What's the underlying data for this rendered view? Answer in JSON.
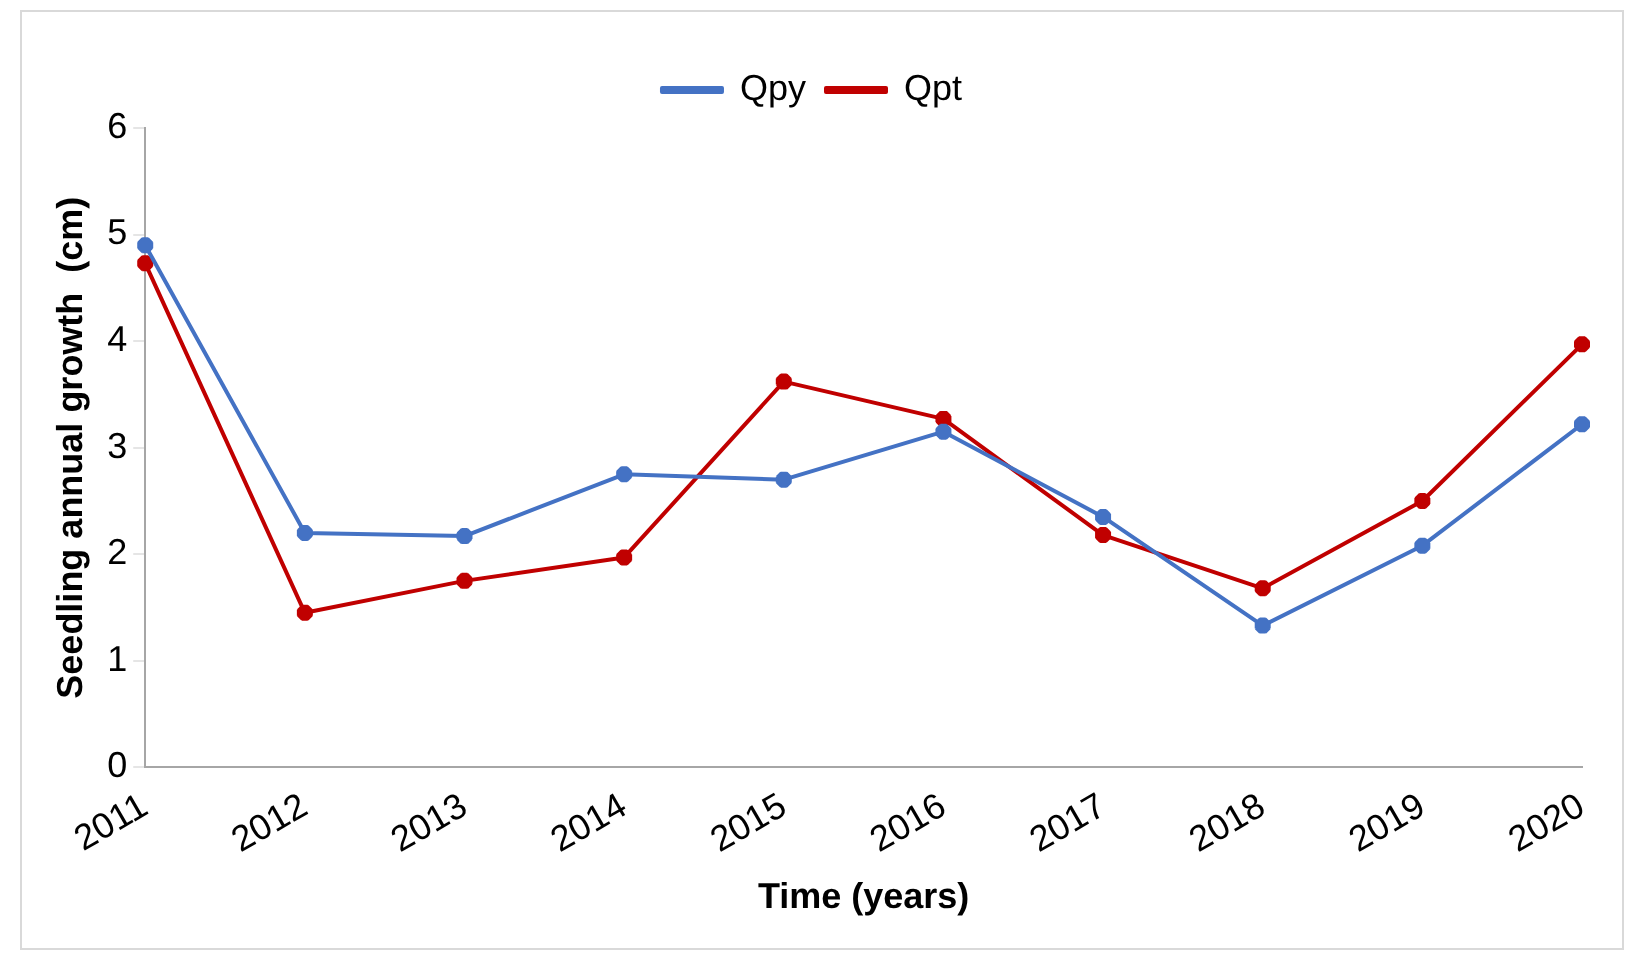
{
  "chart_data": {
    "type": "line",
    "xlabel": "Time (years)",
    "ylabel": "Seedling annual growth  (cm)",
    "categories": [
      "2011",
      "2012",
      "2013",
      "2014",
      "2015",
      "2016",
      "2017",
      "2018",
      "2019",
      "2020"
    ],
    "series": [
      {
        "name": "Qpy",
        "color": "#4472c4",
        "values": [
          4.9,
          2.2,
          2.17,
          2.75,
          2.7,
          3.15,
          2.35,
          1.33,
          2.08,
          3.22
        ]
      },
      {
        "name": "Qpt",
        "color": "#c00000",
        "values": [
          4.73,
          1.45,
          1.75,
          1.97,
          3.62,
          3.27,
          2.18,
          1.68,
          2.5,
          3.97
        ]
      }
    ],
    "ylim": [
      0,
      6
    ],
    "yticks": [
      0,
      1,
      2,
      3,
      4,
      5,
      6
    ],
    "grid": false,
    "legend": "top",
    "marker": "cross",
    "line_style": "solid"
  }
}
